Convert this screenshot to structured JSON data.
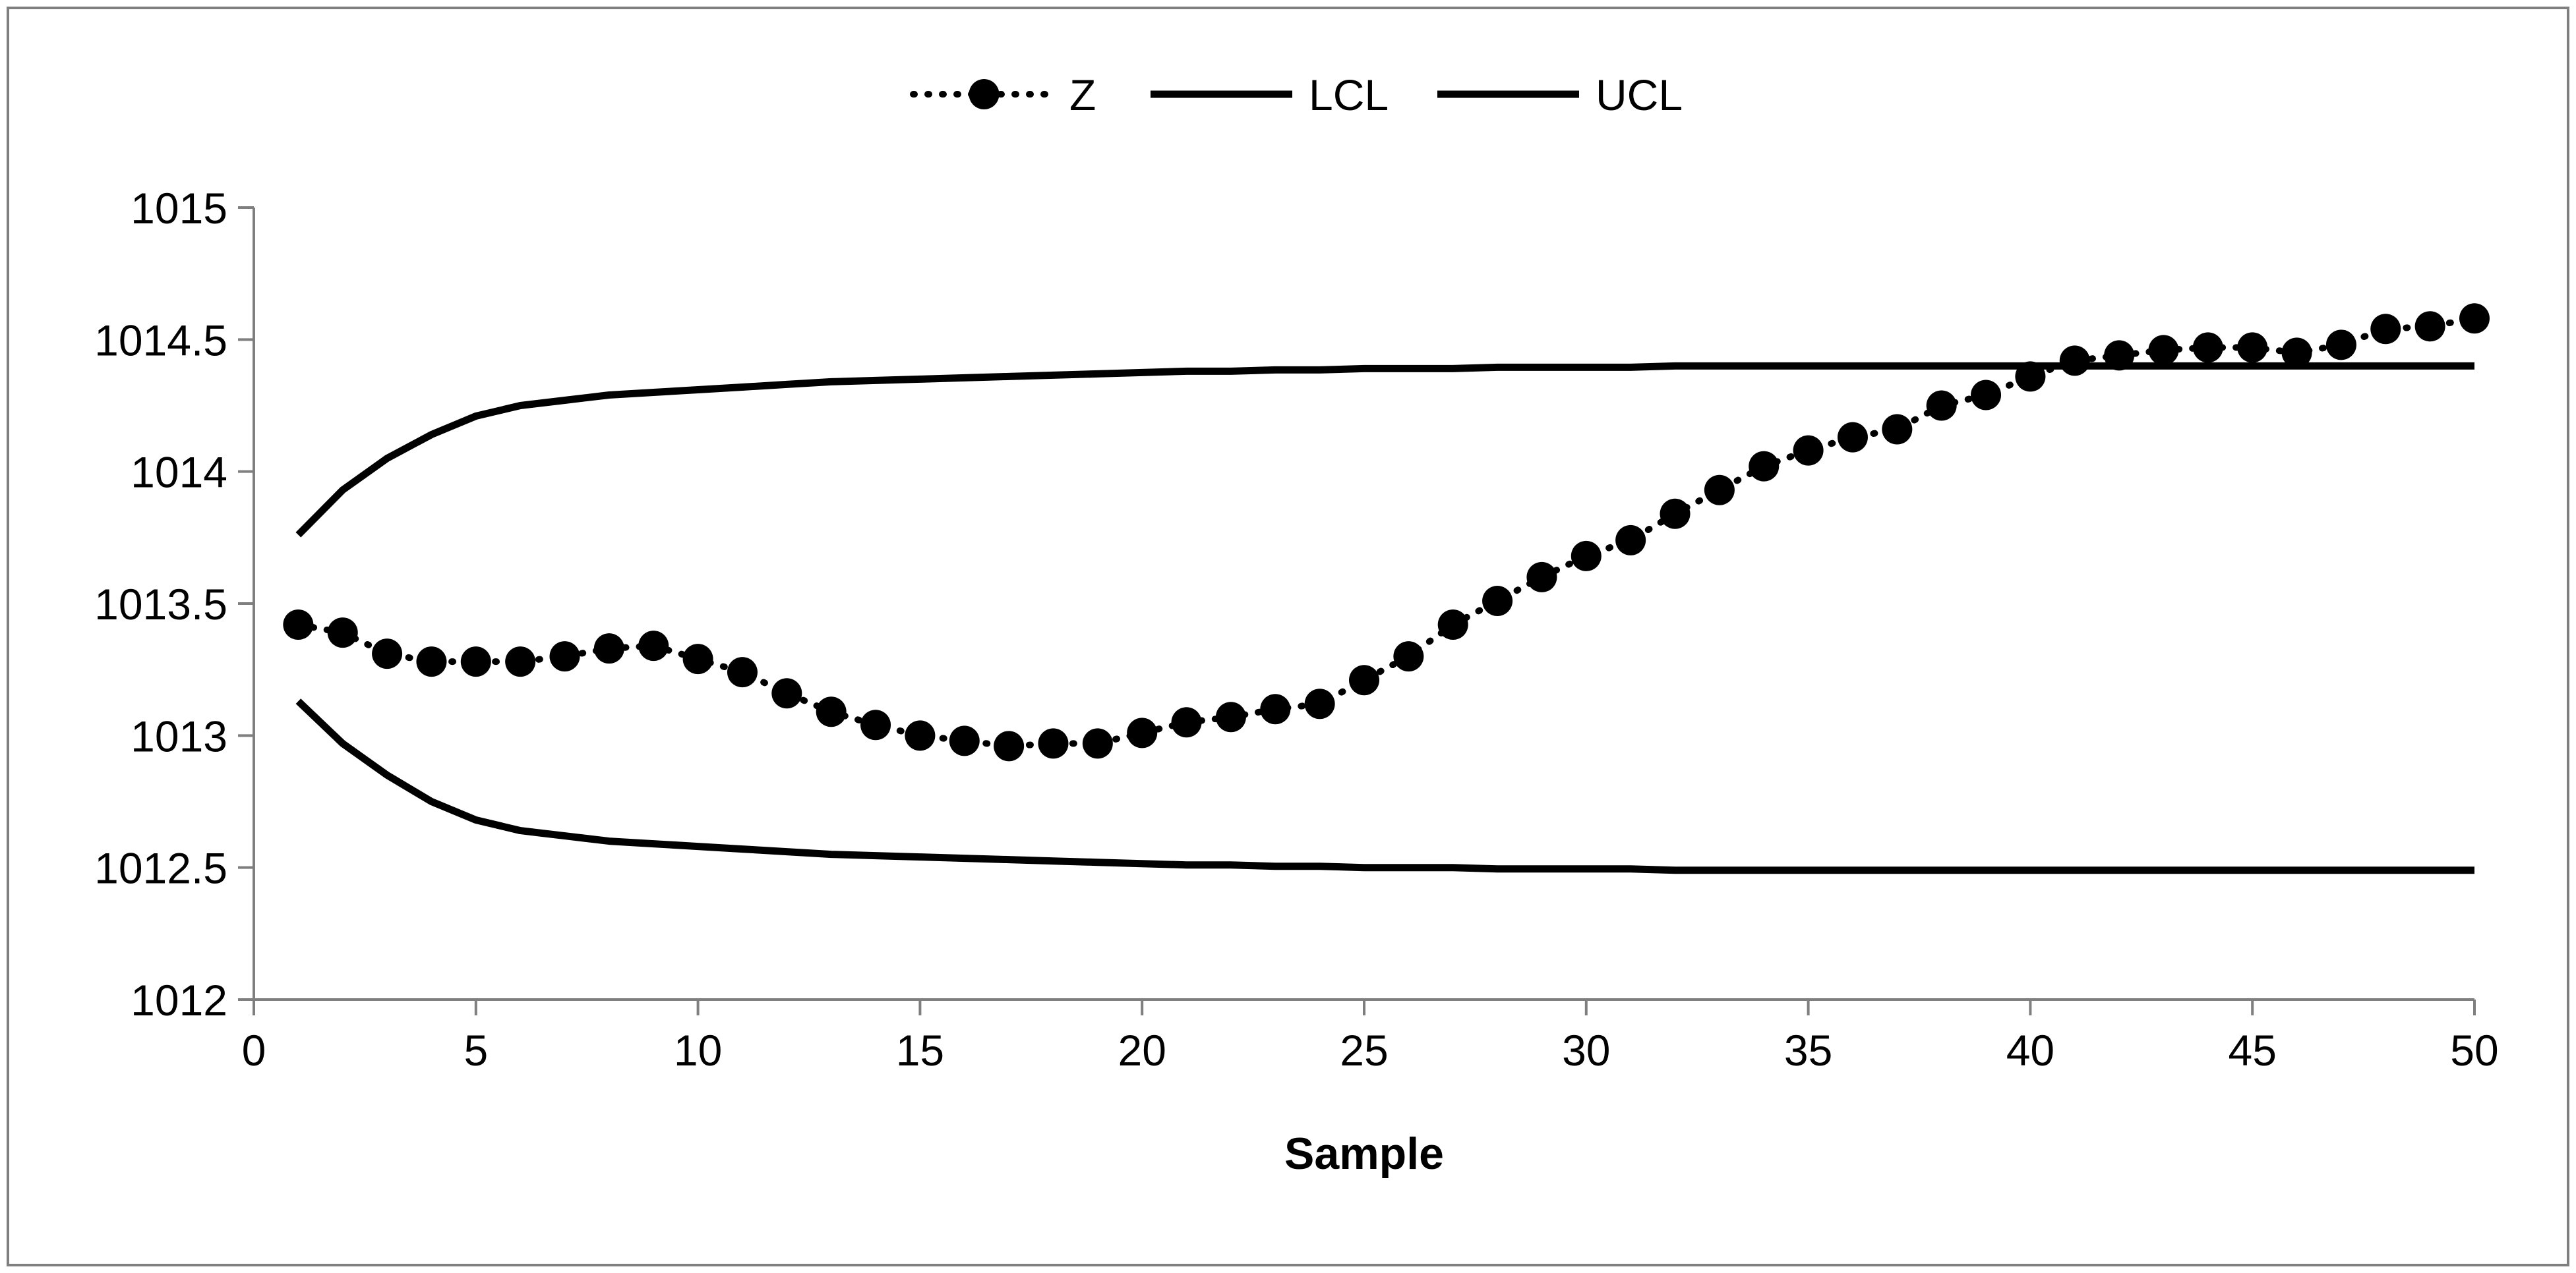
{
  "chart_data": {
    "type": "line",
    "title": "",
    "xlabel": "Sample",
    "ylabel": "",
    "xlim": [
      0,
      50
    ],
    "ylim": [
      1012,
      1015
    ],
    "x_ticks": [
      0,
      5,
      10,
      15,
      20,
      25,
      30,
      35,
      40,
      45,
      50
    ],
    "y_ticks": [
      1012,
      1012.5,
      1013,
      1013.5,
      1014,
      1014.5,
      1015
    ],
    "x_tick_labels": [
      "0",
      "5",
      "10",
      "15",
      "20",
      "25",
      "30",
      "35",
      "40",
      "45",
      "50"
    ],
    "y_tick_labels": [
      "1012",
      "1012.5",
      "1013",
      "1013.5",
      "1014",
      "1014.5",
      "1015"
    ],
    "legend_position": "top-center",
    "grid": false,
    "x": [
      1,
      2,
      3,
      4,
      5,
      6,
      7,
      8,
      9,
      10,
      11,
      12,
      13,
      14,
      15,
      16,
      17,
      18,
      19,
      20,
      21,
      22,
      23,
      24,
      25,
      26,
      27,
      28,
      29,
      30,
      31,
      32,
      33,
      34,
      35,
      36,
      37,
      38,
      39,
      40,
      41,
      42,
      43,
      44,
      45,
      46,
      47,
      48,
      49,
      50
    ],
    "series": [
      {
        "name": "Z",
        "style": "dotted-markers",
        "values": [
          1013.42,
          1013.39,
          1013.31,
          1013.28,
          1013.28,
          1013.28,
          1013.3,
          1013.33,
          1013.34,
          1013.29,
          1013.24,
          1013.16,
          1013.09,
          1013.04,
          1013.0,
          1012.98,
          1012.96,
          1012.97,
          1012.97,
          1013.01,
          1013.05,
          1013.07,
          1013.1,
          1013.12,
          1013.21,
          1013.3,
          1013.42,
          1013.51,
          1013.6,
          1013.68,
          1013.74,
          1013.84,
          1013.93,
          1014.02,
          1014.08,
          1014.13,
          1014.16,
          1014.25,
          1014.29,
          1014.36,
          1014.42,
          1014.44,
          1014.46,
          1014.47,
          1014.47,
          1014.45,
          1014.48,
          1014.54,
          1014.55,
          1014.58
        ]
      },
      {
        "name": "LCL",
        "style": "solid",
        "values": [
          1013.13,
          1012.97,
          1012.85,
          1012.75,
          1012.68,
          1012.64,
          1012.62,
          1012.6,
          1012.59,
          1012.58,
          1012.57,
          1012.56,
          1012.55,
          1012.545,
          1012.54,
          1012.535,
          1012.53,
          1012.525,
          1012.52,
          1012.515,
          1012.51,
          1012.51,
          1012.505,
          1012.505,
          1012.5,
          1012.5,
          1012.5,
          1012.495,
          1012.495,
          1012.495,
          1012.495,
          1012.49,
          1012.49,
          1012.49,
          1012.49,
          1012.49,
          1012.49,
          1012.49,
          1012.49,
          1012.49,
          1012.49,
          1012.49,
          1012.49,
          1012.49,
          1012.49,
          1012.49,
          1012.49,
          1012.49,
          1012.49,
          1012.49
        ]
      },
      {
        "name": "UCL",
        "style": "solid",
        "values": [
          1013.76,
          1013.93,
          1014.05,
          1014.14,
          1014.21,
          1014.25,
          1014.27,
          1014.29,
          1014.3,
          1014.31,
          1014.32,
          1014.33,
          1014.34,
          1014.345,
          1014.35,
          1014.355,
          1014.36,
          1014.365,
          1014.37,
          1014.375,
          1014.38,
          1014.38,
          1014.385,
          1014.385,
          1014.39,
          1014.39,
          1014.39,
          1014.395,
          1014.395,
          1014.395,
          1014.395,
          1014.4,
          1014.4,
          1014.4,
          1014.4,
          1014.4,
          1014.4,
          1014.4,
          1014.4,
          1014.4,
          1014.4,
          1014.4,
          1014.4,
          1014.4,
          1014.4,
          1014.4,
          1014.4,
          1014.4,
          1014.4,
          1014.4
        ]
      }
    ]
  }
}
